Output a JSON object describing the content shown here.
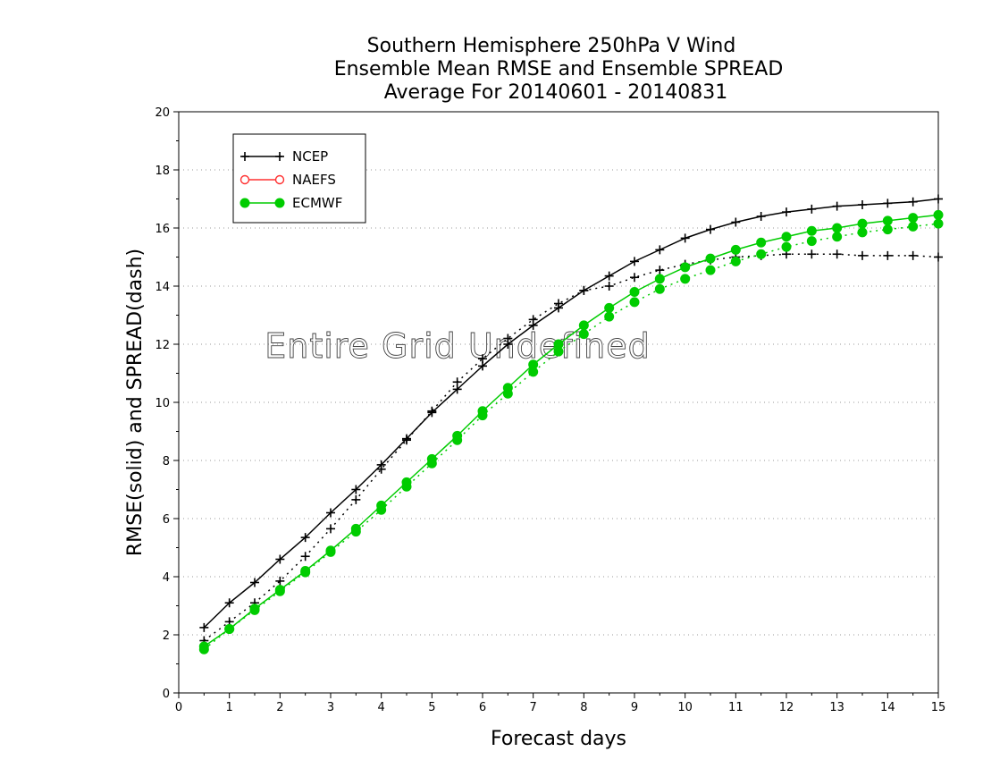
{
  "chart_data": {
    "type": "line",
    "title": [
      "Southern Hemisphere 250hPa V Wind",
      "Ensemble Mean RMSE and Ensemble SPREAD",
      "Average For 20140601 - 20140831"
    ],
    "xlabel": "Forecast days",
    "ylabel": "RMSE(solid) and SPREAD(dash)",
    "xlim": [
      0,
      15
    ],
    "ylim": [
      0,
      20
    ],
    "xticks": [
      "0",
      "1",
      "2",
      "3",
      "4",
      "5",
      "6",
      "7",
      "8",
      "9",
      "10",
      "11",
      "12",
      "13",
      "14",
      "15"
    ],
    "yticks": [
      "0",
      "2",
      "4",
      "6",
      "8",
      "10",
      "12",
      "14",
      "16",
      "18",
      "20"
    ],
    "grid": true,
    "legend": "top-left",
    "annotation": "Entire Grid Undefined",
    "x": [
      0.5,
      1,
      1.5,
      2,
      2.5,
      3,
      3.5,
      4,
      4.5,
      5,
      5.5,
      6,
      6.5,
      7,
      7.5,
      8,
      8.5,
      9,
      9.5,
      10,
      10.5,
      11,
      11.5,
      12,
      12.5,
      13,
      13.5,
      14,
      14.5,
      15
    ],
    "series": [
      {
        "name": "NCEP",
        "color": "#000000",
        "marker": "plus",
        "rmse": [
          2.25,
          3.1,
          3.8,
          4.6,
          5.35,
          6.2,
          7.0,
          7.85,
          8.75,
          9.65,
          10.45,
          11.25,
          12.0,
          12.65,
          13.25,
          13.85,
          14.35,
          14.85,
          15.25,
          15.65,
          15.95,
          16.2,
          16.4,
          16.55,
          16.65,
          16.75,
          16.8,
          16.85,
          16.9,
          17.0
        ],
        "spread": [
          1.8,
          2.45,
          3.1,
          3.85,
          4.7,
          5.65,
          6.65,
          7.7,
          8.7,
          9.7,
          10.7,
          11.5,
          12.2,
          12.85,
          13.4,
          13.85,
          14.0,
          14.3,
          14.55,
          14.75,
          14.9,
          15.0,
          15.05,
          15.1,
          15.1,
          15.1,
          15.05,
          15.05,
          15.05,
          15.0
        ]
      },
      {
        "name": "NAEFS",
        "color": "#ff3030",
        "marker": "open-circle",
        "rmse": [],
        "spread": []
      },
      {
        "name": "ECMWF",
        "color": "#00cc00",
        "marker": "filled-circle",
        "rmse": [
          1.6,
          2.2,
          2.9,
          3.55,
          4.2,
          4.9,
          5.65,
          6.45,
          7.25,
          8.05,
          8.85,
          9.7,
          10.5,
          11.3,
          12.0,
          12.65,
          13.25,
          13.8,
          14.25,
          14.65,
          14.95,
          15.25,
          15.5,
          15.7,
          15.9,
          16.0,
          16.15,
          16.25,
          16.35,
          16.45
        ],
        "spread": [
          1.5,
          2.2,
          2.85,
          3.5,
          4.15,
          4.85,
          5.55,
          6.3,
          7.1,
          7.9,
          8.7,
          9.55,
          10.3,
          11.05,
          11.75,
          12.35,
          12.95,
          13.45,
          13.9,
          14.25,
          14.55,
          14.85,
          15.1,
          15.35,
          15.55,
          15.7,
          15.85,
          15.95,
          16.05,
          16.15
        ]
      }
    ]
  }
}
